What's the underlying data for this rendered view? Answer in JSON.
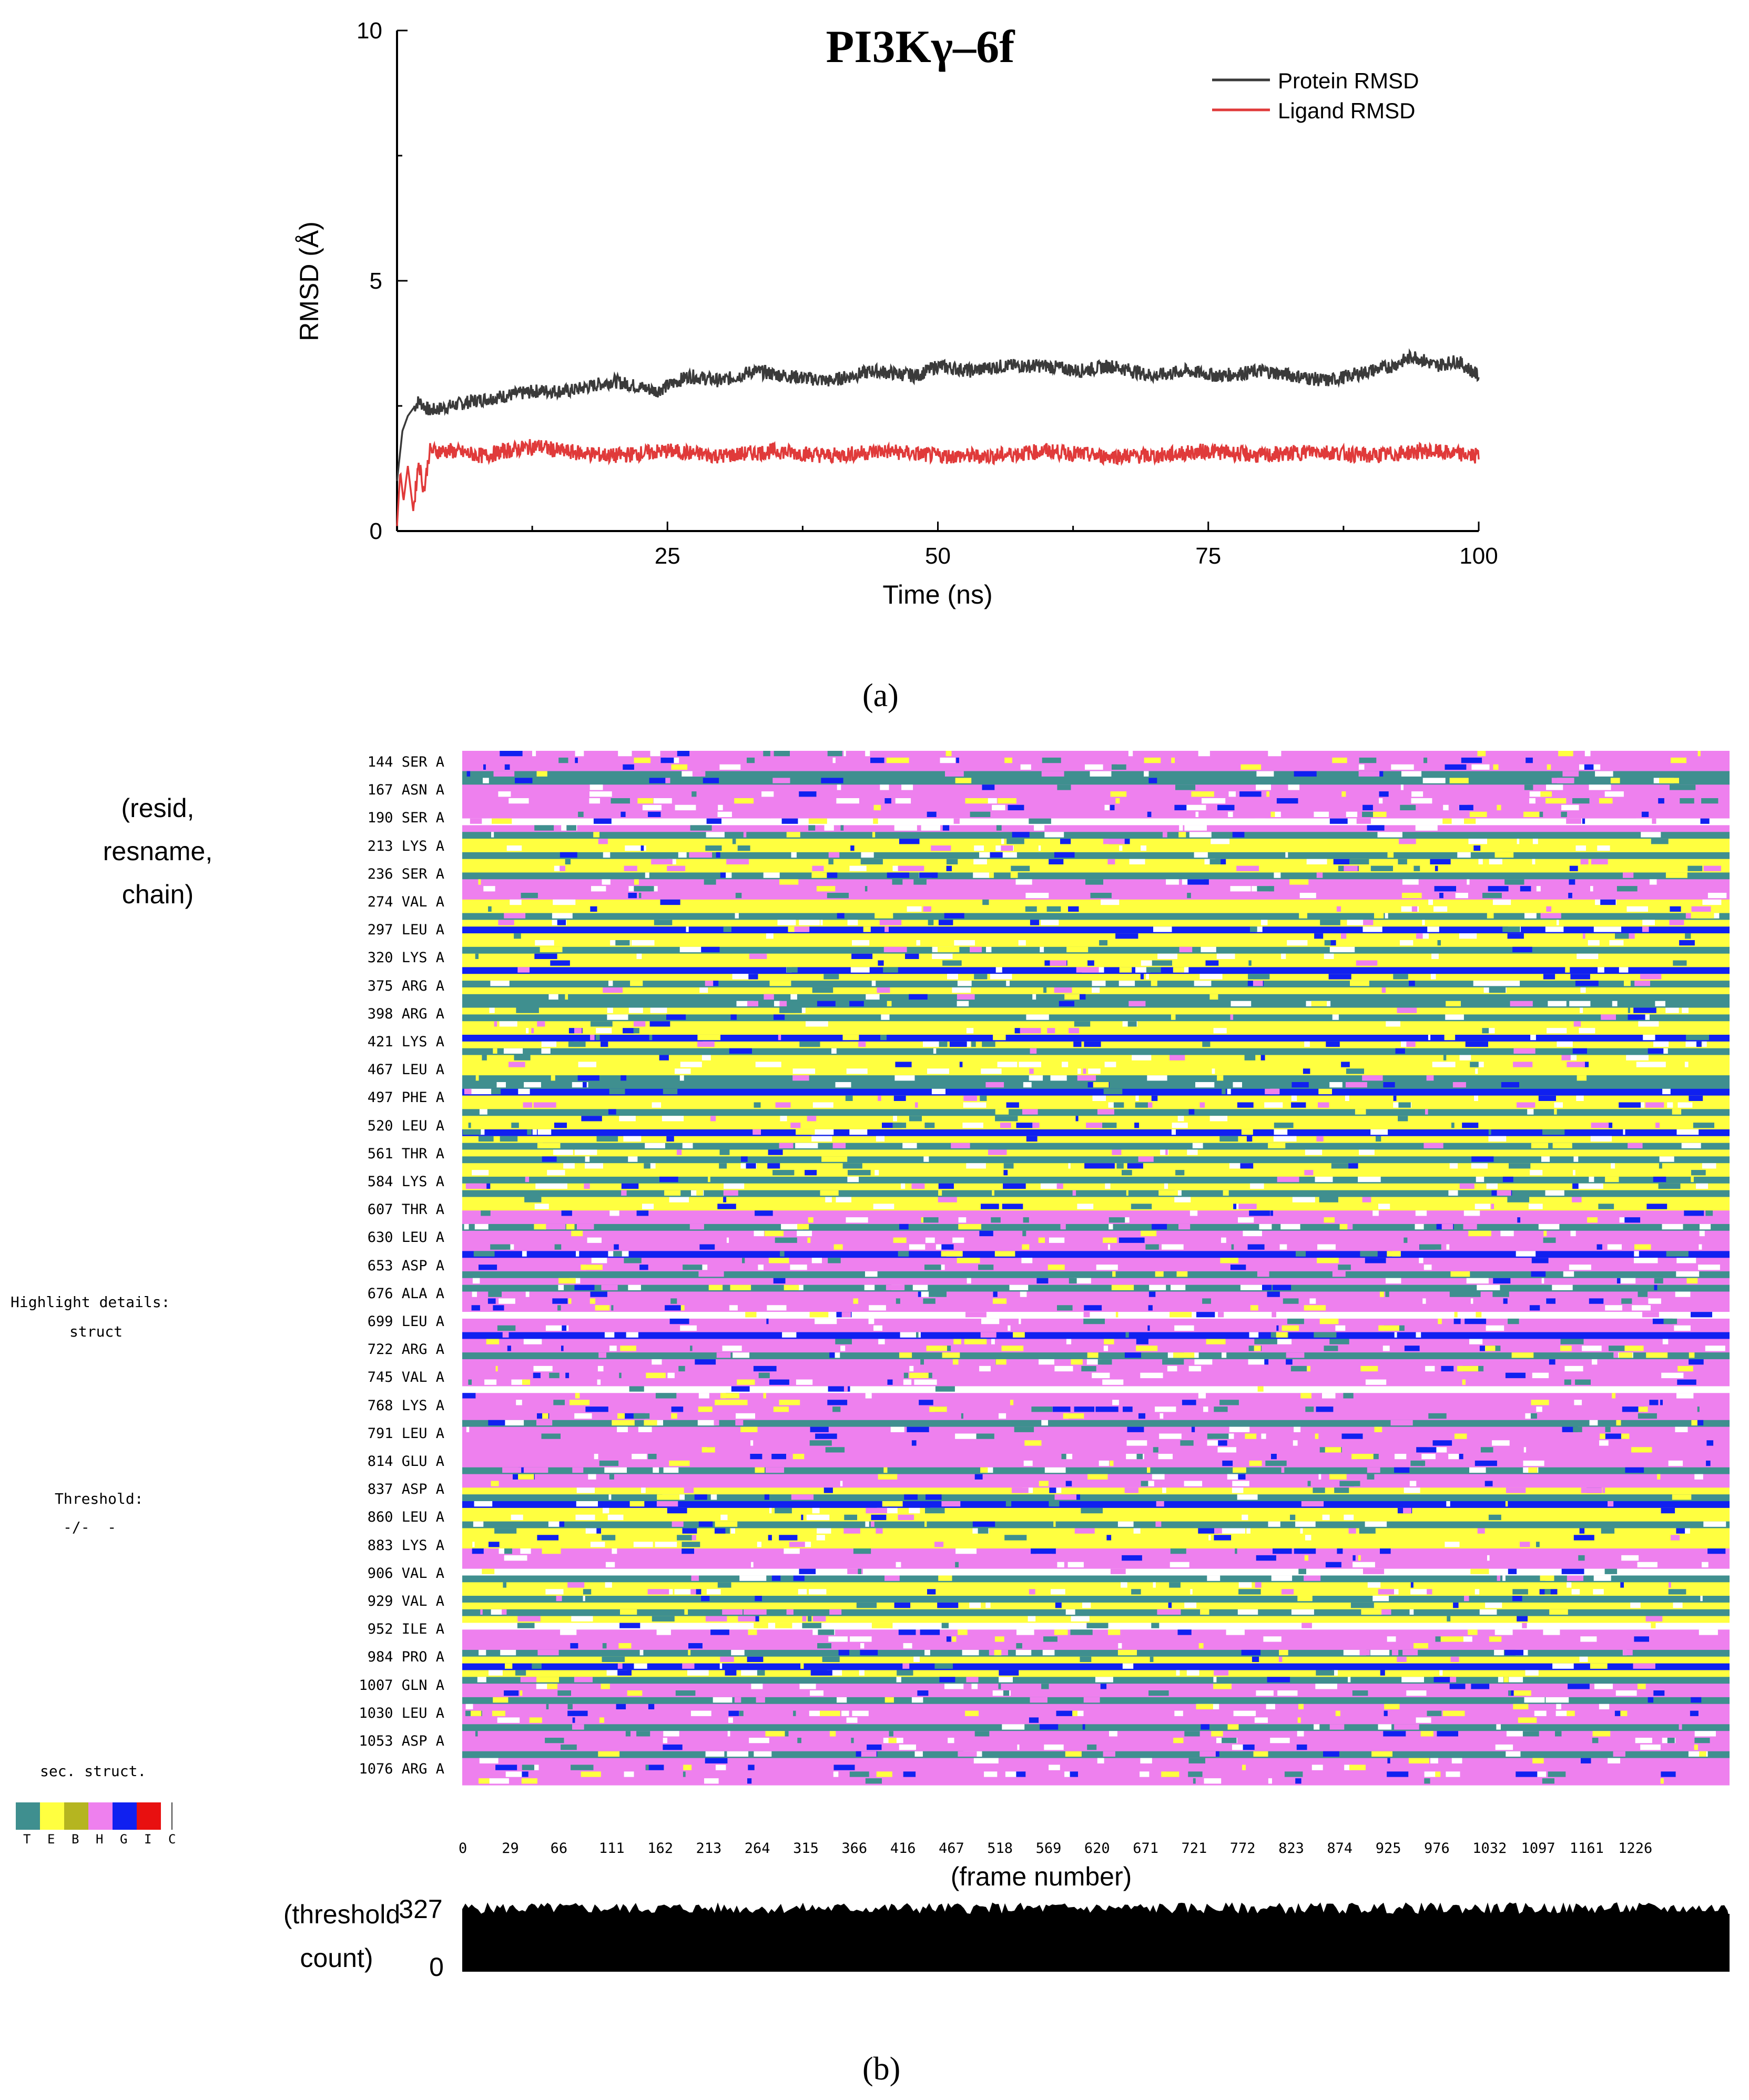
{
  "panel_a": {
    "label": "(a)",
    "chart_data": {
      "type": "line",
      "title": "PI3Kγ–6f",
      "xlabel": "Time (ns)",
      "ylabel": "RMSD (Å)",
      "xlim": [
        0,
        100
      ],
      "ylim": [
        0,
        10
      ],
      "x_ticks": [
        25,
        50,
        75,
        100
      ],
      "y_ticks": [
        0,
        5,
        10
      ],
      "legend_position": "top-right",
      "series": [
        {
          "name": "Protein RMSD",
          "color": "#3a3a3a",
          "x": [
            0,
            0.5,
            1,
            2,
            3,
            5,
            7,
            10,
            13,
            16,
            20,
            24,
            27,
            30,
            33,
            36,
            40,
            44,
            48,
            50,
            53,
            56,
            60,
            63,
            66,
            70,
            73,
            76,
            80,
            83,
            86,
            88,
            90,
            92,
            94,
            96,
            98,
            100
          ],
          "values": [
            1.0,
            2.0,
            2.3,
            2.6,
            2.4,
            2.5,
            2.6,
            2.7,
            2.8,
            2.8,
            3.0,
            2.8,
            3.1,
            3.0,
            3.2,
            3.1,
            3.0,
            3.2,
            3.1,
            3.3,
            3.2,
            3.3,
            3.3,
            3.2,
            3.3,
            3.1,
            3.2,
            3.1,
            3.2,
            3.1,
            3.0,
            3.1,
            3.2,
            3.3,
            3.5,
            3.3,
            3.4,
            3.1
          ]
        },
        {
          "name": "Ligand RMSD",
          "color": "#e03a3a",
          "x": [
            0,
            0.3,
            0.6,
            1,
            1.5,
            2,
            2.5,
            3,
            5,
            8,
            10,
            13,
            15,
            20,
            25,
            30,
            35,
            40,
            45,
            50,
            55,
            60,
            65,
            70,
            75,
            80,
            85,
            90,
            95,
            100
          ],
          "values": [
            0.1,
            1.2,
            0.6,
            1.3,
            0.4,
            1.4,
            0.8,
            1.6,
            1.6,
            1.5,
            1.6,
            1.7,
            1.6,
            1.5,
            1.6,
            1.5,
            1.6,
            1.5,
            1.6,
            1.5,
            1.5,
            1.6,
            1.5,
            1.5,
            1.6,
            1.5,
            1.6,
            1.5,
            1.6,
            1.5
          ]
        }
      ]
    }
  },
  "panel_b": {
    "label": "(b)",
    "left_header": [
      "(resid,",
      "resname,",
      "chain)"
    ],
    "residues": [
      "144 SER A",
      "167 ASN A",
      "190 SER A",
      "213 LYS A",
      "236 SER A",
      "274 VAL A",
      "297 LEU A",
      "320 LYS A",
      "375 ARG A",
      "398 ARG A",
      "421 LYS A",
      "467 LEU A",
      "497 PHE A",
      "520 LEU A",
      "561 THR A",
      "584 LYS A",
      "607 THR A",
      "630 LEU A",
      "653 ASP A",
      "676 ALA A",
      "699 LEU A",
      "722 ARG A",
      "745 VAL A",
      "768 LYS A",
      "791 LEU A",
      "814 GLU A",
      "837 ASP A",
      "860 LEU A",
      "883 LYS A",
      "906 VAL A",
      "929 VAL A",
      "952 ILE A",
      "984 PRO A",
      "1007 GLN A",
      "1030 LEU A",
      "1053 ASP A",
      "1076 ARG A"
    ],
    "highlight_label": "Highlight details:",
    "highlight_value": "struct",
    "threshold_label": "Threshold:",
    "threshold_value": "-/-  -",
    "sec_struct_label": "sec. struct.",
    "sec_struct_legend": [
      {
        "code": "T",
        "color": "#3f8f8f"
      },
      {
        "code": "E",
        "color": "#ffff40"
      },
      {
        "code": "B",
        "color": "#b5b520"
      },
      {
        "code": "H",
        "color": "#ee80ee"
      },
      {
        "code": "G",
        "color": "#1020f0"
      },
      {
        "code": "I",
        "color": "#e81010"
      },
      {
        "code": "C",
        "color": "#ffffff"
      }
    ],
    "frame_ticks": [
      "0",
      "29",
      "66",
      "111",
      "162",
      "213",
      "264",
      "315",
      "366",
      "416",
      "467",
      "518",
      "569",
      "620",
      "671",
      "721",
      "772",
      "823",
      "874",
      "925",
      "976",
      "1032",
      "1097",
      "1161",
      "1226"
    ],
    "frame_axis_label": "(frame number)",
    "threshold_count_label": [
      "(threshold",
      "count)"
    ],
    "threshold_count_max": "327",
    "threshold_count_min": "0",
    "colors": {
      "turn": "#3f8f8f",
      "extended": "#ffff40",
      "helix": "#ee80ee",
      "helix_310": "#1020f0",
      "coil": "#ffffff"
    },
    "chart_data": {
      "type": "heatmap",
      "xlabel": "(frame number)",
      "ylabel": "(resid, resname, chain)",
      "row_pattern": [
        "H",
        "H",
        "H",
        "T",
        "T",
        "H",
        "H",
        "H",
        "H",
        "H",
        "C",
        "H",
        "T",
        "E",
        "E",
        "T",
        "E",
        "E",
        "T",
        "H",
        "H",
        "H",
        "E",
        "E",
        "T",
        "E",
        "G",
        "E",
        "E",
        "T",
        "E",
        "E",
        "G",
        "E",
        "T",
        "E",
        "T",
        "T",
        "E",
        "T",
        "E",
        "E",
        "G",
        "E",
        "T",
        "E",
        "E",
        "E",
        "T",
        "T",
        "G",
        "E",
        "E",
        "T",
        "E",
        "E",
        "G",
        "E",
        "T",
        "E",
        "T",
        "E",
        "E",
        "T",
        "E",
        "T",
        "E",
        "E",
        "H",
        "H",
        "T",
        "H",
        "H",
        "H",
        "G",
        "H",
        "H",
        "T",
        "H",
        "T",
        "H",
        "H",
        "H",
        "C",
        "H",
        "H",
        "G",
        "H",
        "H",
        "T",
        "H",
        "H",
        "H",
        "H",
        "C",
        "H",
        "H",
        "H",
        "H",
        "T",
        "H",
        "H",
        "H",
        "H",
        "H",
        "H",
        "T",
        "H",
        "H",
        "E",
        "T",
        "G",
        "E",
        "E",
        "T",
        "E",
        "E",
        "E",
        "H",
        "H",
        "H",
        "C",
        "T",
        "E",
        "E",
        "T",
        "E",
        "T",
        "E",
        "C",
        "H",
        "H",
        "H",
        "T",
        "E",
        "G",
        "E",
        "T",
        "H",
        "H",
        "T",
        "H",
        "H",
        "H",
        "T",
        "H",
        "H",
        "H",
        "T",
        "H",
        "H",
        "H",
        "H"
      ]
    }
  }
}
